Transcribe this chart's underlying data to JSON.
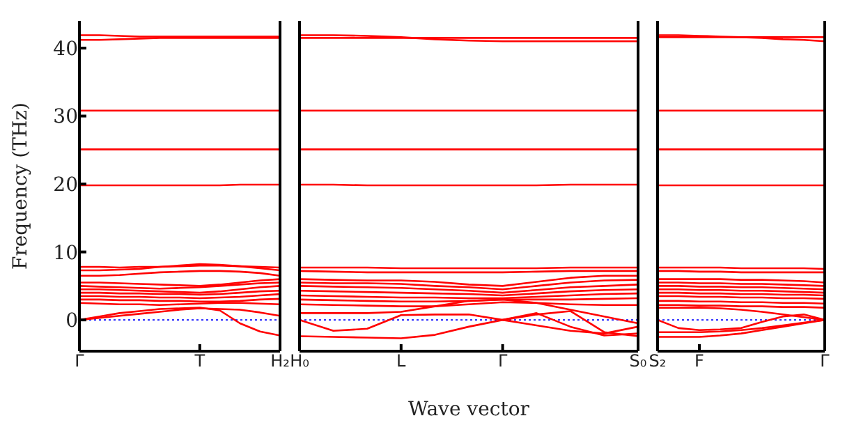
{
  "chart_data": [
    {
      "type": "line",
      "ylabel": "Frequency (THz)",
      "categories": [
        "Γ",
        null,
        null,
        null,
        null,
        null,
        "T",
        null,
        null,
        null,
        "H₂"
      ],
      "ylim": [
        -4.6,
        44
      ],
      "yticks": [
        0,
        10,
        20,
        30,
        40
      ],
      "ref_lines": [
        {
          "axis": "y",
          "value": 0,
          "color": "#0000ff",
          "line_style": "dotted"
        }
      ],
      "line_style": "solid",
      "series": [
        {
          "color": "#ff0000",
          "values": [
            41.9,
            41.9,
            41.8,
            41.7,
            41.7,
            41.7,
            41.7,
            41.7,
            41.7,
            41.7,
            41.7
          ]
        },
        {
          "color": "#ff0000",
          "values": [
            41.2,
            41.2,
            41.3,
            41.4,
            41.5,
            41.5,
            41.5,
            41.5,
            41.5,
            41.5,
            41.5
          ]
        },
        {
          "color": "#ff0000",
          "values": [
            30.8,
            30.8,
            30.8,
            30.8,
            30.8,
            30.8,
            30.8,
            30.8,
            30.8,
            30.8,
            30.8
          ]
        },
        {
          "color": "#ff0000",
          "values": [
            25.1,
            25.1,
            25.1,
            25.1,
            25.1,
            25.1,
            25.1,
            25.1,
            25.1,
            25.1,
            25.1
          ]
        },
        {
          "color": "#ff0000",
          "values": [
            19.8,
            19.8,
            19.8,
            19.8,
            19.8,
            19.8,
            19.8,
            19.8,
            19.9,
            19.9,
            19.9
          ]
        },
        {
          "color": "#ff0000",
          "values": [
            7.8,
            7.8,
            7.7,
            7.8,
            7.8,
            7.9,
            8.0,
            8.0,
            7.9,
            7.8,
            7.7
          ]
        },
        {
          "color": "#ff0000",
          "values": [
            7.3,
            7.3,
            7.4,
            7.5,
            7.8,
            8.0,
            8.2,
            8.1,
            7.9,
            7.6,
            7.3
          ]
        },
        {
          "color": "#ff0000",
          "values": [
            6.5,
            6.5,
            6.6,
            6.8,
            7.0,
            7.1,
            7.2,
            7.2,
            7.1,
            6.9,
            6.5
          ]
        },
        {
          "color": "#ff0000",
          "values": [
            5.5,
            5.5,
            5.4,
            5.3,
            5.2,
            5.1,
            5.0,
            5.2,
            5.5,
            5.8,
            6.0
          ]
        },
        {
          "color": "#ff0000",
          "values": [
            5.0,
            4.9,
            4.8,
            4.7,
            4.6,
            4.7,
            4.8,
            5.0,
            5.2,
            5.4,
            5.5
          ]
        },
        {
          "color": "#ff0000",
          "values": [
            4.5,
            4.5,
            4.4,
            4.3,
            4.2,
            4.1,
            4.0,
            4.2,
            4.5,
            4.8,
            5.0
          ]
        },
        {
          "color": "#ff0000",
          "values": [
            4.0,
            4.0,
            3.9,
            3.9,
            3.8,
            3.8,
            3.7,
            3.8,
            4.0,
            4.2,
            4.3
          ]
        },
        {
          "color": "#ff0000",
          "values": [
            3.5,
            3.5,
            3.4,
            3.4,
            3.3,
            3.3,
            3.2,
            3.3,
            3.4,
            3.6,
            3.8
          ]
        },
        {
          "color": "#ff0000",
          "values": [
            3.0,
            3.0,
            2.9,
            2.9,
            2.8,
            2.8,
            2.7,
            2.7,
            2.8,
            3.0,
            3.1
          ]
        },
        {
          "color": "#ff0000",
          "values": [
            2.5,
            2.4,
            2.3,
            2.3,
            2.2,
            2.3,
            2.4,
            2.5,
            2.5,
            2.4,
            2.3
          ]
        },
        {
          "color": "#ff0000",
          "values": [
            0,
            0.5,
            1.0,
            1.3,
            1.6,
            1.7,
            1.8,
            1.4,
            -0.5,
            -1.7,
            -2.3
          ]
        },
        {
          "color": "#ff0000",
          "values": [
            0,
            0.3,
            0.6,
            0.9,
            1.2,
            1.5,
            1.7,
            1.6,
            1.5,
            1.1,
            0.6
          ]
        }
      ]
    },
    {
      "type": "line",
      "xlabel": "Wave vector",
      "categories": [
        "H₀",
        null,
        null,
        "L",
        null,
        null,
        "Γ",
        null,
        null,
        null,
        "S₀"
      ],
      "ylim": [
        -4.6,
        44
      ],
      "yticks": [
        0,
        10,
        20,
        30,
        40
      ],
      "tick_labels": "x",
      "ref_lines": [
        {
          "axis": "y",
          "value": 0,
          "color": "#0000ff",
          "line_style": "dotted"
        }
      ],
      "line_style": "solid",
      "series": [
        {
          "color": "#ff0000",
          "values": [
            41.5,
            41.5,
            41.5,
            41.5,
            41.5,
            41.5,
            41.5,
            41.5,
            41.5,
            41.5,
            41.5
          ]
        },
        {
          "color": "#ff0000",
          "values": [
            41.9,
            41.9,
            41.8,
            41.6,
            41.3,
            41.1,
            41.0,
            41.0,
            41.0,
            41.0,
            41.0
          ]
        },
        {
          "color": "#ff0000",
          "values": [
            30.8,
            30.8,
            30.8,
            30.8,
            30.8,
            30.8,
            30.8,
            30.8,
            30.8,
            30.8,
            30.8
          ]
        },
        {
          "color": "#ff0000",
          "values": [
            25.1,
            25.1,
            25.1,
            25.1,
            25.1,
            25.1,
            25.1,
            25.1,
            25.1,
            25.1,
            25.1
          ]
        },
        {
          "color": "#ff0000",
          "values": [
            19.9,
            19.9,
            19.8,
            19.8,
            19.8,
            19.8,
            19.8,
            19.8,
            19.9,
            19.9,
            19.9
          ]
        },
        {
          "color": "#ff0000",
          "values": [
            7.7,
            7.7,
            7.7,
            7.6,
            7.6,
            7.6,
            7.6,
            7.6,
            7.7,
            7.7,
            7.7
          ]
        },
        {
          "color": "#ff0000",
          "values": [
            7.2,
            7.1,
            7.0,
            7.0,
            7.0,
            7.0,
            7.0,
            7.1,
            7.2,
            7.2,
            7.2
          ]
        },
        {
          "color": "#ff0000",
          "values": [
            6.0,
            5.9,
            5.8,
            5.8,
            5.6,
            5.2,
            5.0,
            5.6,
            6.2,
            6.5,
            6.5
          ]
        },
        {
          "color": "#ff0000",
          "values": [
            5.5,
            5.4,
            5.4,
            5.3,
            5.0,
            4.8,
            4.5,
            5.0,
            5.5,
            5.8,
            5.9
          ]
        },
        {
          "color": "#ff0000",
          "values": [
            5.0,
            4.9,
            4.8,
            4.7,
            4.5,
            4.3,
            4.0,
            4.4,
            4.8,
            5.0,
            5.2
          ]
        },
        {
          "color": "#ff0000",
          "values": [
            4.3,
            4.2,
            4.1,
            4.0,
            3.9,
            3.8,
            3.6,
            3.9,
            4.2,
            4.4,
            4.5
          ]
        },
        {
          "color": "#ff0000",
          "values": [
            3.6,
            3.5,
            3.4,
            3.3,
            3.3,
            3.2,
            3.2,
            3.4,
            3.6,
            3.8,
            3.9
          ]
        },
        {
          "color": "#ff0000",
          "values": [
            3.0,
            2.9,
            2.8,
            2.7,
            2.7,
            2.8,
            3.0,
            3.0,
            3.0,
            3.1,
            3.2
          ]
        },
        {
          "color": "#ff0000",
          "values": [
            2.3,
            2.2,
            2.1,
            2.0,
            2.0,
            2.3,
            2.6,
            2.5,
            2.3,
            2.2,
            2.2
          ]
        },
        {
          "color": "#ff0000",
          "values": [
            1.0,
            1.0,
            1.0,
            1.2,
            2.0,
            2.8,
            3.0,
            2.5,
            1.5,
            0.5,
            -0.5
          ]
        },
        {
          "color": "#ff0000",
          "values": [
            0,
            -1.6,
            -1.3,
            0.7,
            0.8,
            0.8,
            0,
            -0.8,
            -1.6,
            -2.0,
            -1.0
          ]
        },
        {
          "color": "#ff0000",
          "values": [
            -2.4,
            -2.5,
            -2.6,
            -2.7,
            -2.2,
            -1.0,
            0,
            1.0,
            -1.0,
            -2.3,
            -2.0
          ]
        },
        {
          "color": "#ff0000",
          "values": [
            null,
            null,
            null,
            null,
            null,
            null,
            0,
            0.8,
            1.3,
            -1.8,
            -2.4
          ]
        }
      ]
    },
    {
      "type": "line",
      "categories": [
        "S₂",
        null,
        "F",
        null,
        null,
        null,
        null,
        null,
        "Γ"
      ],
      "ylim": [
        -4.6,
        44
      ],
      "yticks": [
        0,
        10,
        20,
        30,
        40
      ],
      "tick_labels": "x",
      "ref_lines": [
        {
          "axis": "y",
          "value": 0,
          "color": "#0000ff",
          "line_style": "dotted"
        }
      ],
      "line_style": "solid",
      "series": [
        {
          "color": "#ff0000",
          "values": [
            41.6,
            41.6,
            41.6,
            41.6,
            41.6,
            41.6,
            41.6,
            41.6,
            41.6
          ]
        },
        {
          "color": "#ff0000",
          "values": [
            41.9,
            41.9,
            41.8,
            41.7,
            41.6,
            41.5,
            41.3,
            41.2,
            41.0
          ]
        },
        {
          "color": "#ff0000",
          "values": [
            30.8,
            30.8,
            30.8,
            30.8,
            30.8,
            30.8,
            30.8,
            30.8,
            30.8
          ]
        },
        {
          "color": "#ff0000",
          "values": [
            25.1,
            25.1,
            25.1,
            25.1,
            25.1,
            25.1,
            25.1,
            25.1,
            25.1
          ]
        },
        {
          "color": "#ff0000",
          "values": [
            19.8,
            19.8,
            19.8,
            19.8,
            19.8,
            19.8,
            19.8,
            19.8,
            19.8
          ]
        },
        {
          "color": "#ff0000",
          "values": [
            7.7,
            7.7,
            7.7,
            7.7,
            7.6,
            7.6,
            7.6,
            7.6,
            7.5
          ]
        },
        {
          "color": "#ff0000",
          "values": [
            7.2,
            7.2,
            7.1,
            7.1,
            7.0,
            7.0,
            7.0,
            7.0,
            7.0
          ]
        },
        {
          "color": "#ff0000",
          "values": [
            6.0,
            6.0,
            6.0,
            6.0,
            5.9,
            5.9,
            5.8,
            5.7,
            5.5
          ]
        },
        {
          "color": "#ff0000",
          "values": [
            5.5,
            5.5,
            5.4,
            5.4,
            5.3,
            5.3,
            5.2,
            5.1,
            5.0
          ]
        },
        {
          "color": "#ff0000",
          "values": [
            5.0,
            5.0,
            4.9,
            4.9,
            4.8,
            4.8,
            4.7,
            4.6,
            4.5
          ]
        },
        {
          "color": "#ff0000",
          "values": [
            4.5,
            4.5,
            4.4,
            4.4,
            4.3,
            4.3,
            4.2,
            4.1,
            4.0
          ]
        },
        {
          "color": "#ff0000",
          "values": [
            4.0,
            4.0,
            3.9,
            3.9,
            3.8,
            3.8,
            3.7,
            3.7,
            3.6
          ]
        },
        {
          "color": "#ff0000",
          "values": [
            3.5,
            3.5,
            3.4,
            3.4,
            3.3,
            3.3,
            3.2,
            3.2,
            3.1
          ]
        },
        {
          "color": "#ff0000",
          "values": [
            2.8,
            2.8,
            2.7,
            2.7,
            2.6,
            2.6,
            2.5,
            2.5,
            2.4
          ]
        },
        {
          "color": "#ff0000",
          "values": [
            2.2,
            2.2,
            2.1,
            2.1,
            2.0,
            2.0,
            1.9,
            1.9,
            1.8
          ]
        },
        {
          "color": "#ff0000",
          "values": [
            1.8,
            1.8,
            1.8,
            1.7,
            1.5,
            1.2,
            0.8,
            0.4,
            0
          ]
        },
        {
          "color": "#ff0000",
          "values": [
            0,
            -1.2,
            -1.5,
            -1.4,
            -1.2,
            -0.3,
            0.5,
            0.8,
            0
          ]
        },
        {
          "color": "#ff0000",
          "values": [
            -1.8,
            -1.8,
            -1.8,
            -1.7,
            -1.5,
            -1.2,
            -0.8,
            -0.4,
            0
          ]
        },
        {
          "color": "#ff0000",
          "values": [
            -2.5,
            -2.5,
            -2.5,
            -2.3,
            -2.0,
            -1.5,
            -1.0,
            -0.5,
            0
          ]
        }
      ]
    }
  ]
}
